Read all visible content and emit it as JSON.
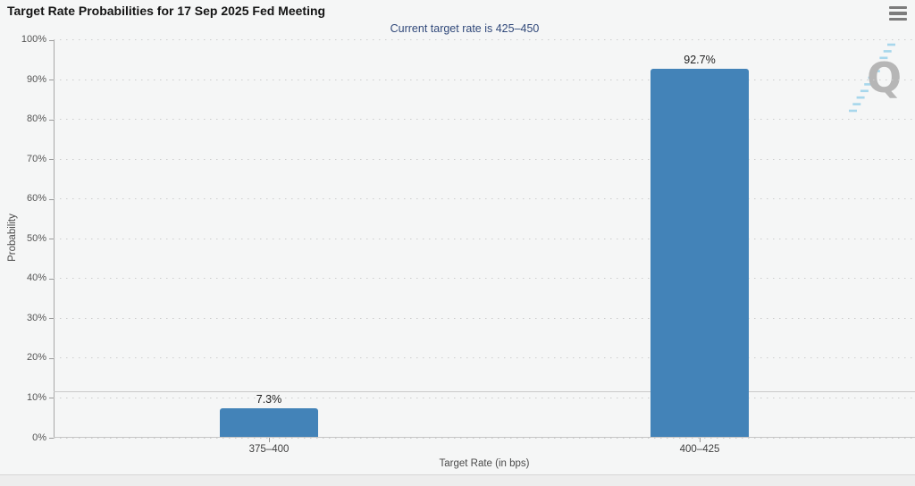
{
  "header": {
    "title": "Target Rate Probabilities for 17 Sep 2025 Fed Meeting",
    "menu_icon": "hamburger-menu-icon"
  },
  "chart_data": {
    "type": "bar",
    "title": "Target Rate Probabilities for 17 Sep 2025 Fed Meeting",
    "subtitle": "Current target rate is 425–450",
    "categories": [
      "375–400",
      "400–425"
    ],
    "values": [
      7.3,
      92.7
    ],
    "value_labels": [
      "7.3%",
      "92.7%"
    ],
    "xlabel": "Target Rate (in bps)",
    "ylabel": "Probability",
    "ylim": [
      0,
      100
    ],
    "ytick_step": 10,
    "ytick_labels": [
      "0%",
      "10%",
      "20%",
      "30%",
      "40%",
      "50%",
      "60%",
      "70%",
      "80%",
      "90%",
      "100%"
    ],
    "grid": "horizontal-dotted",
    "legend": "none",
    "bar_color": "#4383b8",
    "horizontal_rule_pct": 11.7
  },
  "logo": {
    "name": "quikstrike-q-logo",
    "letter": "Q"
  },
  "colors": {
    "background": "#f5f6f6",
    "subtitle_text": "#31497a",
    "bar": "#4383b8",
    "grid": "#cdcdcd",
    "axis": "#a8a8a8",
    "logo_gray": "#b6b6b6",
    "logo_blue": "#a7d7ec"
  }
}
